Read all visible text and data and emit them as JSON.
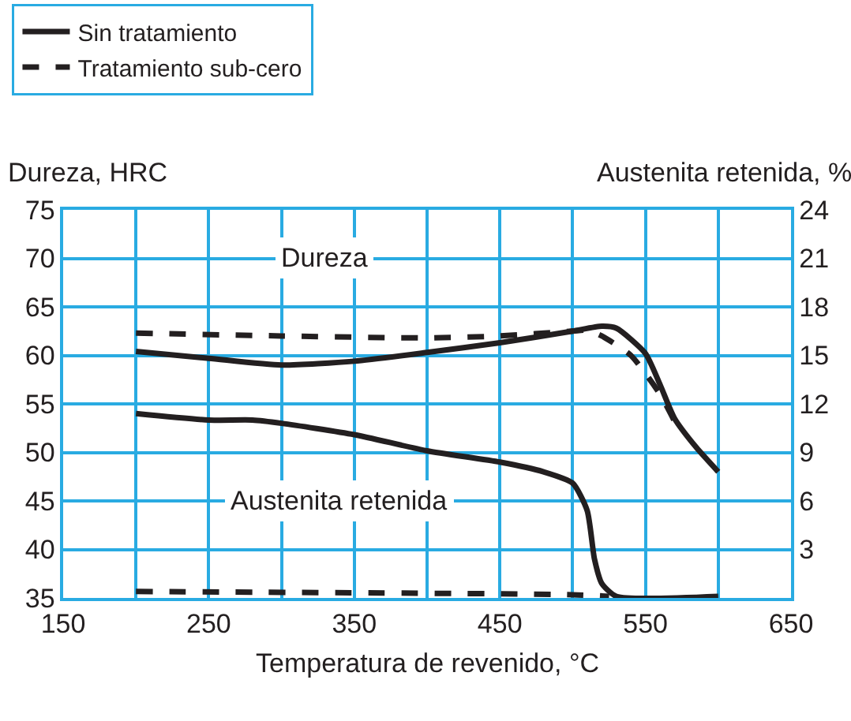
{
  "chart_data": {
    "type": "line",
    "xlabel": "Temperatura de revenido, °C",
    "ylabel": "Dureza, HRC",
    "y2label": "Austenita retenida, %",
    "xlim": [
      150,
      650
    ],
    "xticks": [
      150,
      {
        "value": 200,
        "label": null
      },
      250,
      {
        "value": 300,
        "label": null
      },
      350,
      {
        "value": 400,
        "label": null
      },
      450,
      {
        "value": 500,
        "label": null
      },
      550,
      {
        "value": 600,
        "label": null
      },
      650
    ],
    "ylim": [
      35,
      75
    ],
    "yticks": [
      35,
      40,
      45,
      50,
      55,
      60,
      65,
      70,
      75
    ],
    "y2lim": [
      0,
      24
    ],
    "y2ticks": [
      3,
      6,
      9,
      12,
      15,
      18,
      21,
      24
    ],
    "grid": true,
    "legend": "top left",
    "marker": "none",
    "annotations": [
      "Dureza",
      "Austenita retenida"
    ],
    "series": [
      {
        "name": "Sin tratamiento",
        "color": "#231f20",
        "line_style": "solid",
        "x": [
          200,
          250,
          300,
          350,
          400,
          450,
          500,
          520,
          530,
          550,
          560,
          570,
          585,
          600
        ],
        "values": [
          60.4,
          59.7,
          59.0,
          59.4,
          60.3,
          61.3,
          62.5,
          63.0,
          62.8,
          60.2,
          57,
          53.5,
          50.5,
          48
        ]
      },
      {
        "name": "Tratamiento sub-cero",
        "color": "#231f20",
        "line_style": "dashed",
        "x": [
          200,
          300,
          400,
          450,
          500,
          510,
          520,
          540,
          560,
          570
        ],
        "values": [
          62.3,
          62.0,
          61.8,
          62.0,
          62.5,
          62.6,
          62,
          60,
          56,
          53.2
        ]
      },
      {
        "color": "#231f20",
        "line_style": "solid",
        "axis": "y2",
        "x": [
          200,
          250,
          280,
          300,
          350,
          400,
          450,
          480,
          500,
          510,
          515,
          520,
          530,
          600
        ],
        "values": [
          11.4,
          11.0,
          11.0,
          10.8,
          10.1,
          9.1,
          8.4,
          7.8,
          7.1,
          5.4,
          2.4,
          0.9,
          0.1,
          0.1
        ]
      },
      {
        "color": "#231f20",
        "line_style": "dashed",
        "axis": "y2",
        "x": [
          200,
          500,
          525
        ],
        "values": [
          0.4,
          0.2,
          0.1
        ]
      }
    ]
  }
}
